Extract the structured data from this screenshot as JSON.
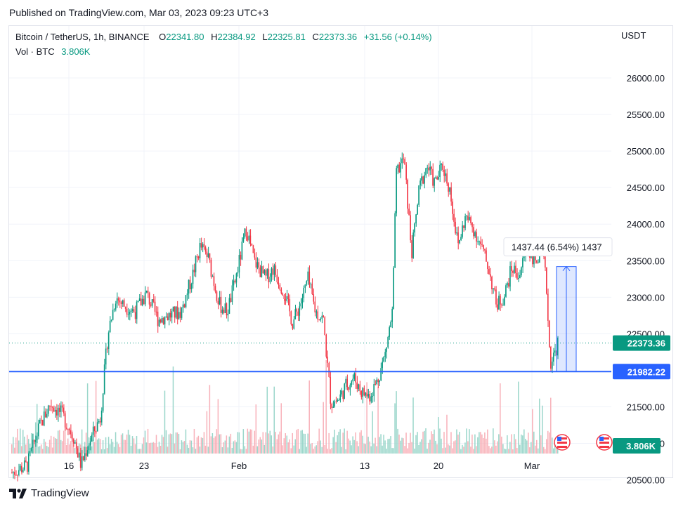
{
  "published": "Published on TradingView.com, Mar 03, 2023 09:23 UTC+3",
  "legend": {
    "symbol": "Bitcoin / TetherUS, 1h, BINANCE",
    "o_label": "O",
    "o": "22341.80",
    "h_label": "H",
    "h": "22384.92",
    "l_label": "L",
    "l": "22325.81",
    "c_label": "C",
    "c": "22373.36",
    "change": "+31.56 (+0.14%)",
    "vol_label": "Vol · BTC",
    "vol": "3.806K"
  },
  "measure_label": "1437.44 (6.54%) 1437",
  "footer": "TradingView",
  "colors": {
    "up": "#089981",
    "down": "#f23645",
    "line": "#2962ff",
    "accent": "#2962ff"
  },
  "chart_data": {
    "type": "candlestick",
    "currency": "USDT",
    "y_ticks": [
      "26000.00",
      "25500.00",
      "25000.00",
      "24500.00",
      "24000.00",
      "23500.00",
      "23000.00",
      "22500.00",
      "21500.00",
      "21000.00",
      "20500.00"
    ],
    "ylim": [
      20400,
      26250
    ],
    "x_ticks": [
      "16",
      "23",
      "Feb",
      "13",
      "20",
      "Mar"
    ],
    "last_price": "22373.36",
    "horizontal_line": "21982.22",
    "volume_badge": "3.806K",
    "measurement": {
      "from": 21982.22,
      "to": 23419.66,
      "label": "1437.44 (6.54%)"
    },
    "price_path": [
      [
        0,
        20600
      ],
      [
        4,
        20700
      ],
      [
        7,
        21200
      ],
      [
        10,
        21550
      ],
      [
        13,
        21400
      ],
      [
        16,
        21100
      ],
      [
        18,
        20700
      ],
      [
        20,
        21000
      ],
      [
        23,
        21350
      ],
      [
        25,
        22500
      ],
      [
        27,
        23000
      ],
      [
        29,
        22900
      ],
      [
        32,
        22800
      ],
      [
        35,
        23050
      ],
      [
        38,
        22700
      ],
      [
        41,
        22750
      ],
      [
        44,
        22800
      ],
      [
        47,
        23300
      ],
      [
        49,
        23700
      ],
      [
        51,
        23550
      ],
      [
        54,
        22900
      ],
      [
        56,
        22800
      ],
      [
        58,
        23200
      ],
      [
        60,
        23700
      ],
      [
        61,
        23950
      ],
      [
        63,
        23500
      ],
      [
        66,
        23250
      ],
      [
        68,
        23400
      ],
      [
        71,
        23050
      ],
      [
        73,
        22650
      ],
      [
        75,
        22900
      ],
      [
        77,
        23250
      ],
      [
        79,
        22800
      ],
      [
        81,
        22700
      ],
      [
        83,
        21550
      ],
      [
        85,
        21600
      ],
      [
        87,
        21800
      ],
      [
        89,
        21900
      ],
      [
        91,
        21700
      ],
      [
        93,
        21650
      ],
      [
        95,
        21850
      ],
      [
        97,
        22200
      ],
      [
        99,
        22800
      ],
      [
        100,
        24700
      ],
      [
        102,
        24900
      ],
      [
        104,
        23600
      ],
      [
        106,
        24500
      ],
      [
        108,
        24800
      ],
      [
        110,
        24550
      ],
      [
        112,
        24800
      ],
      [
        114,
        24450
      ],
      [
        116,
        23700
      ],
      [
        118,
        24100
      ],
      [
        120,
        23950
      ],
      [
        122,
        23700
      ],
      [
        124,
        23400
      ],
      [
        126,
        22900
      ],
      [
        128,
        23000
      ],
      [
        130,
        23400
      ],
      [
        132,
        23300
      ],
      [
        134,
        23700
      ],
      [
        136,
        23500
      ],
      [
        138,
        23600
      ],
      [
        139,
        23200
      ],
      [
        140,
        22100
      ],
      [
        141,
        22200
      ],
      [
        142,
        22373
      ]
    ]
  }
}
